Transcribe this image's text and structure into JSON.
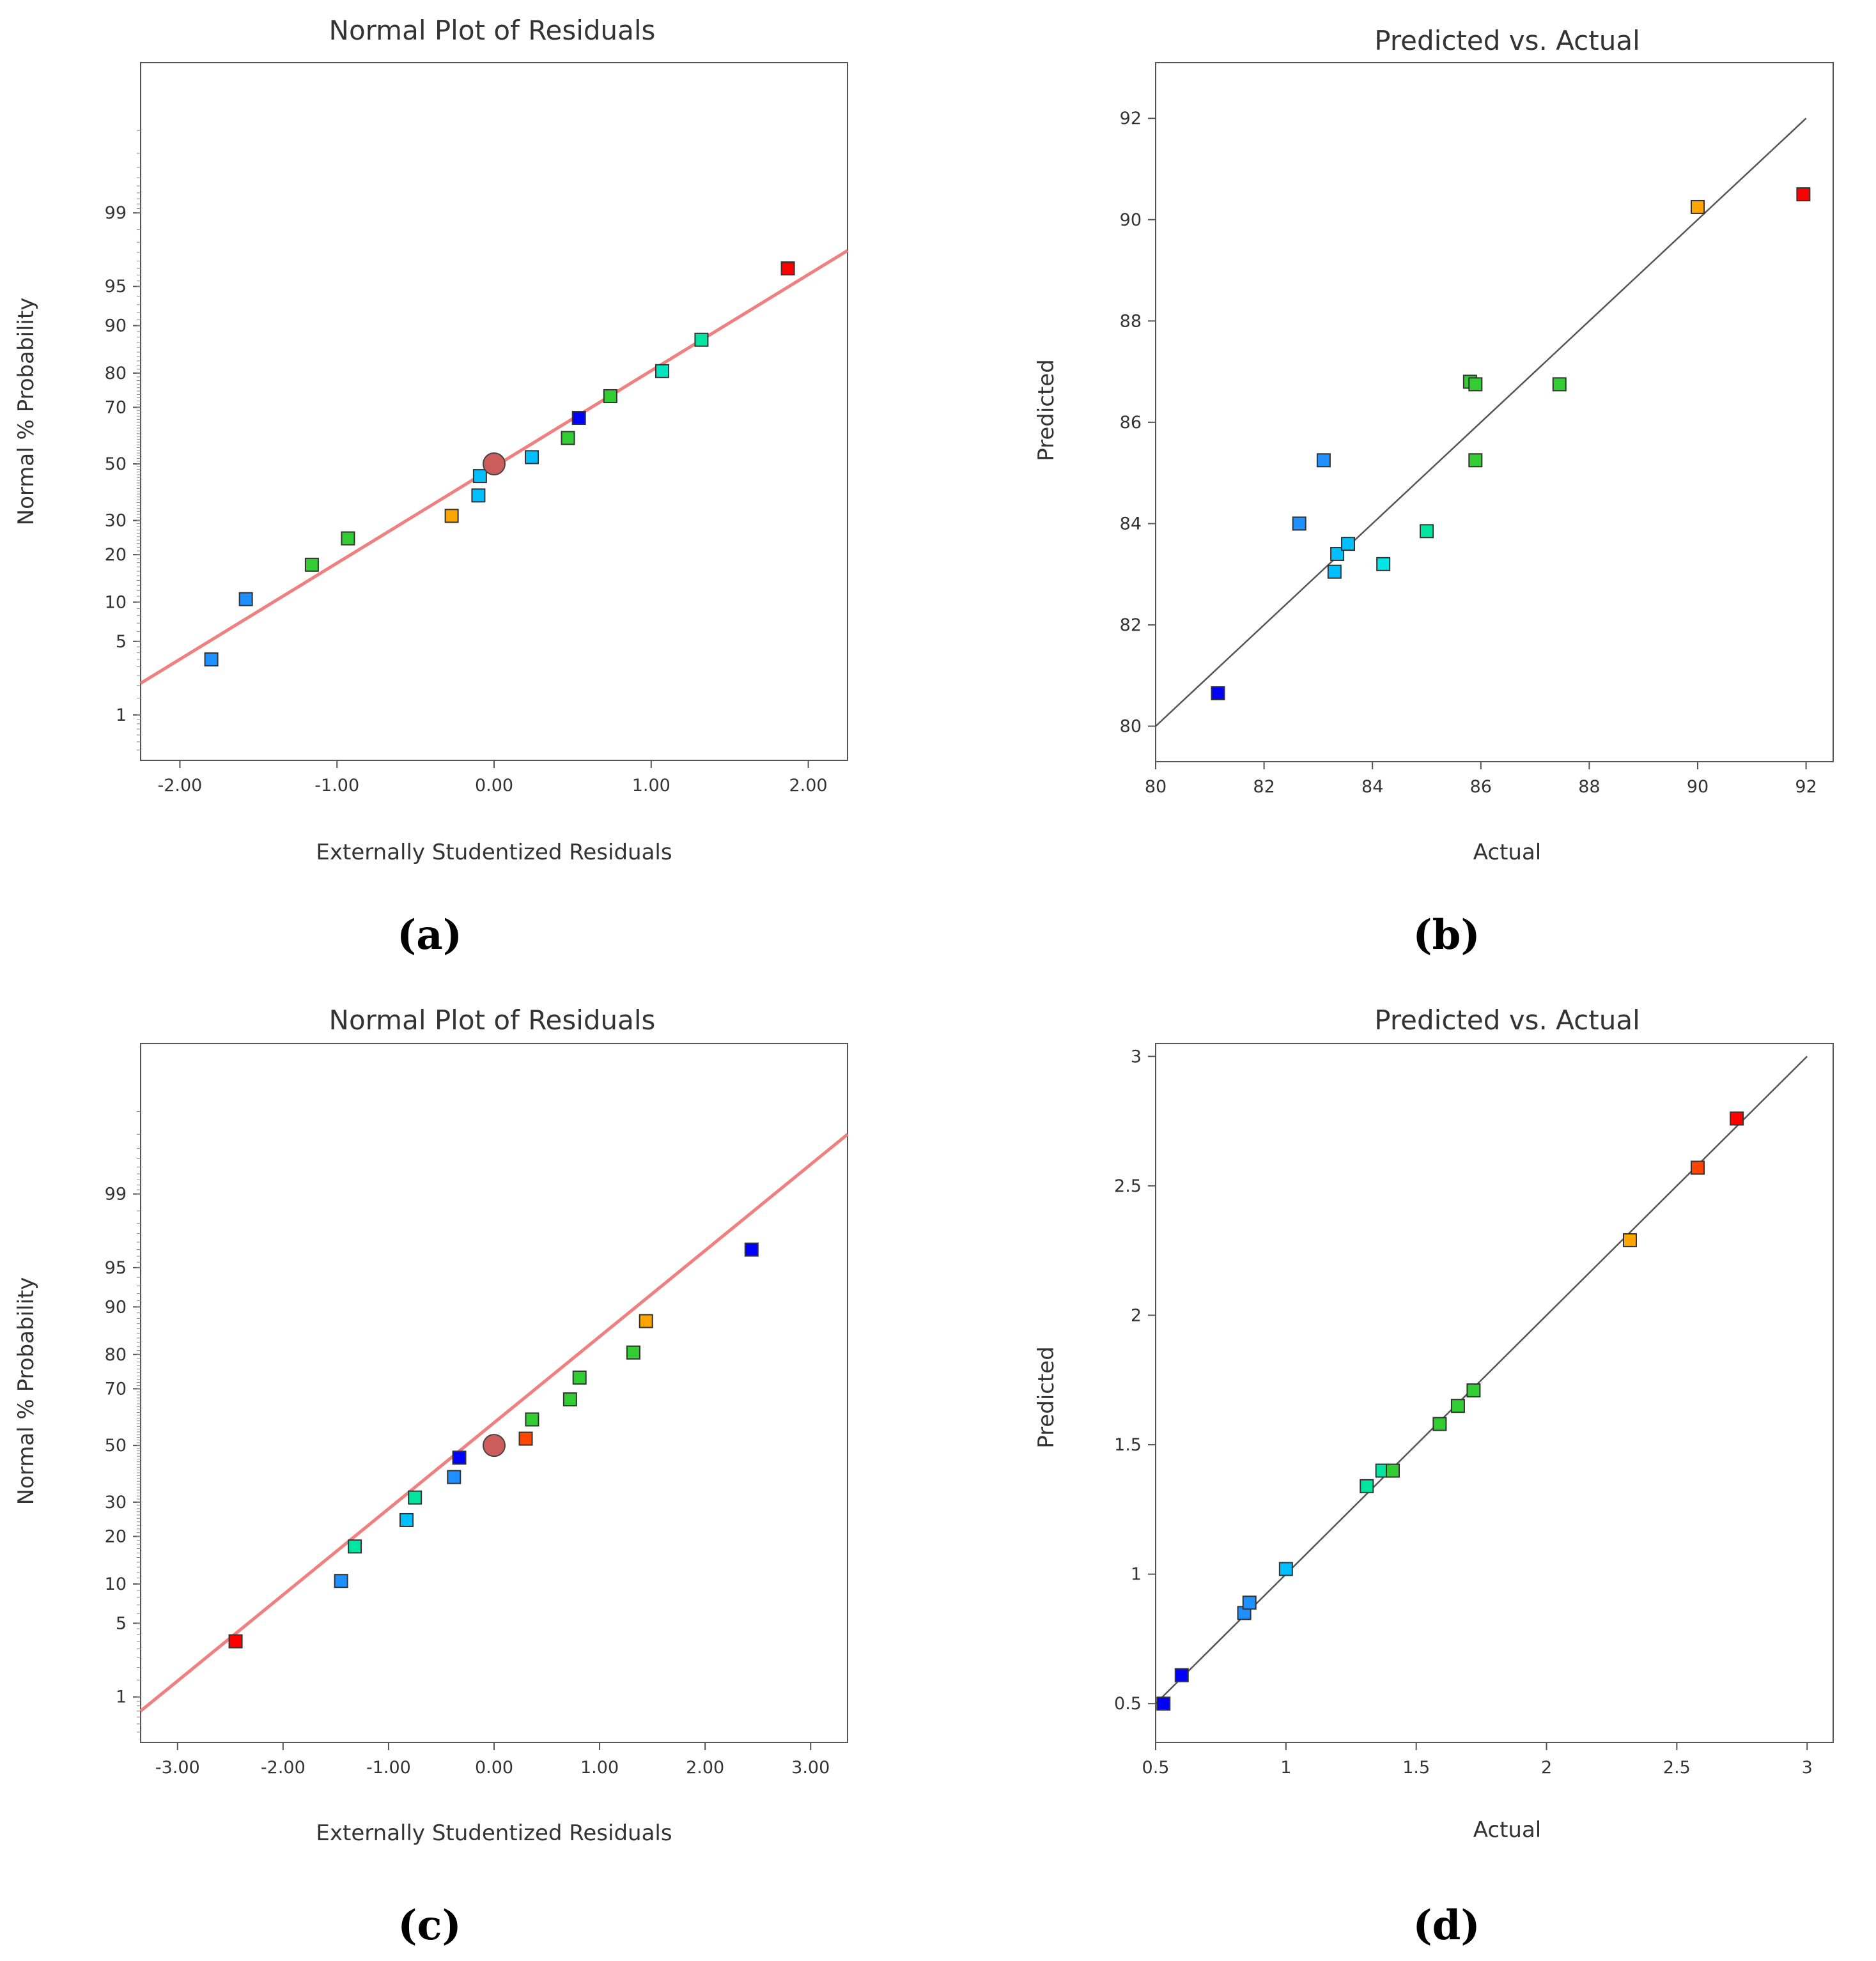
{
  "panels": [
    {
      "id": "a",
      "panel_label": "(a)",
      "chart_data": {
        "type": "scatter",
        "title": "Normal Plot of Residuals",
        "xlabel": "Externally Studentized Residuals",
        "ylabel": "Normal % Probability",
        "xlim": [
          -2.25,
          2.25
        ],
        "ylim": [
          0.3,
          99.99
        ],
        "y_scale": "normal-probability",
        "grid": false,
        "x_ticks": [
          -2,
          -1,
          0,
          1,
          2
        ],
        "x_tick_labels": [
          "-2.00",
          "-1.00",
          "0.00",
          "1.00",
          "2.00"
        ],
        "y_ticks": [
          1,
          5,
          10,
          20,
          30,
          50,
          70,
          80,
          90,
          95,
          99
        ],
        "y_tick_labels": [
          "1",
          "5",
          "10",
          "20",
          "30",
          "50",
          "70",
          "80",
          "90",
          "95",
          "99"
        ],
        "reference_line": {
          "x": [
            -2.25,
            2.25
          ],
          "y": [
            2.1,
            97.6
          ],
          "color": "#f08080"
        },
        "center_point": {
          "x": 0.0,
          "y": 50,
          "color": "#cd5c5c"
        },
        "points": [
          {
            "x": -1.8,
            "y": 3.5,
            "color": "#1e90ff"
          },
          {
            "x": -1.58,
            "y": 10.5,
            "color": "#1e90ff"
          },
          {
            "x": -1.16,
            "y": 17.5,
            "color": "#32cd32"
          },
          {
            "x": -0.93,
            "y": 24.5,
            "color": "#32cd32"
          },
          {
            "x": -0.27,
            "y": 31.5,
            "color": "#ffa500"
          },
          {
            "x": -0.1,
            "y": 38.5,
            "color": "#00bfff"
          },
          {
            "x": -0.09,
            "y": 45.5,
            "color": "#00bfff"
          },
          {
            "x": 0.24,
            "y": 52.5,
            "color": "#00bfff"
          },
          {
            "x": 0.47,
            "y": 59.5,
            "color": "#32cd32"
          },
          {
            "x": 0.54,
            "y": 66.5,
            "color": "#0000ff"
          },
          {
            "x": 0.74,
            "y": 73.5,
            "color": "#32cd32"
          },
          {
            "x": 1.07,
            "y": 80.5,
            "color": "#00e5c0"
          },
          {
            "x": 1.32,
            "y": 87.5,
            "color": "#00e5a0"
          },
          {
            "x": 1.87,
            "y": 96.5,
            "color": "#ff0000"
          }
        ]
      }
    },
    {
      "id": "b",
      "panel_label": "(b)",
      "chart_data": {
        "type": "scatter",
        "title": "Predicted vs. Actual",
        "xlabel": "Actual",
        "ylabel": "Predicted",
        "xlim": [
          80,
          92.5
        ],
        "ylim": [
          79.3,
          93.1
        ],
        "grid": false,
        "x_ticks": [
          80,
          82,
          84,
          86,
          88,
          90,
          92
        ],
        "x_tick_labels": [
          "80",
          "82",
          "84",
          "86",
          "88",
          "90",
          "92"
        ],
        "y_ticks": [
          80,
          82,
          84,
          86,
          88,
          90,
          92
        ],
        "y_tick_labels": [
          "80",
          "82",
          "84",
          "86",
          "88",
          "90",
          "92"
        ],
        "reference_line": {
          "x": [
            80,
            92
          ],
          "y": [
            80,
            92
          ],
          "color": "#555555"
        },
        "points": [
          {
            "x": 81.15,
            "y": 80.65,
            "color": "#0000ff"
          },
          {
            "x": 82.65,
            "y": 84.0,
            "color": "#1e90ff"
          },
          {
            "x": 83.1,
            "y": 85.25,
            "color": "#1e90ff"
          },
          {
            "x": 83.3,
            "y": 83.05,
            "color": "#00bfff"
          },
          {
            "x": 83.35,
            "y": 83.4,
            "color": "#00bfff"
          },
          {
            "x": 83.55,
            "y": 83.6,
            "color": "#00bfff"
          },
          {
            "x": 84.2,
            "y": 83.2,
            "color": "#00e5e5"
          },
          {
            "x": 85.0,
            "y": 83.85,
            "color": "#00e5a0"
          },
          {
            "x": 85.8,
            "y": 86.8,
            "color": "#32cd32"
          },
          {
            "x": 85.9,
            "y": 86.75,
            "color": "#32cd32"
          },
          {
            "x": 85.9,
            "y": 85.25,
            "color": "#32cd32"
          },
          {
            "x": 87.45,
            "y": 86.75,
            "color": "#32cd32"
          },
          {
            "x": 90.0,
            "y": 90.25,
            "color": "#ffa500"
          },
          {
            "x": 91.95,
            "y": 90.5,
            "color": "#ff0000"
          }
        ]
      }
    },
    {
      "id": "c",
      "panel_label": "(c)",
      "chart_data": {
        "type": "scatter",
        "title": "Normal Plot of Residuals",
        "xlabel": "Externally Studentized Residuals",
        "ylabel": "Normal % Probability",
        "xlim": [
          -3.35,
          3.35
        ],
        "ylim": [
          0.3,
          99.99
        ],
        "y_scale": "normal-probability",
        "grid": false,
        "x_ticks": [
          -3,
          -2,
          -1,
          0,
          1,
          2,
          3
        ],
        "x_tick_labels": [
          "-3.00",
          "-2.00",
          "-1.00",
          "0.00",
          "1.00",
          "2.00",
          "3.00"
        ],
        "y_ticks": [
          1,
          5,
          10,
          20,
          30,
          50,
          70,
          80,
          90,
          95,
          99
        ],
        "y_tick_labels": [
          "1",
          "5",
          "10",
          "20",
          "30",
          "50",
          "70",
          "80",
          "90",
          "95",
          "99"
        ],
        "reference_line": {
          "x": [
            -3.35,
            3.35
          ],
          "y": [
            0.7,
            99.8
          ],
          "color": "#f08080"
        },
        "center_point": {
          "x": 0.0,
          "y": 50,
          "color": "#cd5c5c"
        },
        "points": [
          {
            "x": -2.45,
            "y": 3.5,
            "color": "#ff0000"
          },
          {
            "x": -1.45,
            "y": 10.5,
            "color": "#1e90ff"
          },
          {
            "x": -1.32,
            "y": 17.5,
            "color": "#00e5a0"
          },
          {
            "x": -0.83,
            "y": 24.5,
            "color": "#00bfff"
          },
          {
            "x": -0.75,
            "y": 31.5,
            "color": "#00e5a0"
          },
          {
            "x": -0.38,
            "y": 38.5,
            "color": "#1e90ff"
          },
          {
            "x": -0.33,
            "y": 45.5,
            "color": "#0000ff"
          },
          {
            "x": 0.3,
            "y": 52.5,
            "color": "#ff4500"
          },
          {
            "x": 0.36,
            "y": 59.5,
            "color": "#32cd32"
          },
          {
            "x": 0.72,
            "y": 66.5,
            "color": "#32cd32"
          },
          {
            "x": 0.81,
            "y": 73.5,
            "color": "#32cd32"
          },
          {
            "x": 1.32,
            "y": 80.5,
            "color": "#32cd32"
          },
          {
            "x": 1.44,
            "y": 87.5,
            "color": "#ffa500"
          },
          {
            "x": 2.44,
            "y": 96.5,
            "color": "#0000ff"
          }
        ]
      }
    },
    {
      "id": "d",
      "panel_label": "(d)",
      "chart_data": {
        "type": "scatter",
        "title": "Predicted vs. Actual",
        "xlabel": "Actual",
        "ylabel": "Predicted",
        "xlim": [
          0.5,
          3.1
        ],
        "ylim": [
          0.35,
          3.05
        ],
        "grid": false,
        "x_ticks": [
          0.5,
          1,
          1.5,
          2,
          2.5,
          3
        ],
        "x_tick_labels": [
          "0.5",
          "1",
          "1.5",
          "2",
          "2.5",
          "3"
        ],
        "y_ticks": [
          0.5,
          1,
          1.5,
          2,
          2.5,
          3
        ],
        "y_tick_labels": [
          "0.5",
          "1",
          "1.5",
          "2",
          "2.5",
          "3"
        ],
        "reference_line": {
          "x": [
            0.5,
            3.0
          ],
          "y": [
            0.5,
            3.0
          ],
          "color": "#555555"
        },
        "points": [
          {
            "x": 0.53,
            "y": 0.5,
            "color": "#0000ff"
          },
          {
            "x": 0.6,
            "y": 0.61,
            "color": "#0000ff"
          },
          {
            "x": 0.84,
            "y": 0.85,
            "color": "#1e90ff"
          },
          {
            "x": 0.86,
            "y": 0.89,
            "color": "#1e90ff"
          },
          {
            "x": 1.0,
            "y": 1.02,
            "color": "#00bfff"
          },
          {
            "x": 1.31,
            "y": 1.34,
            "color": "#00e5a0"
          },
          {
            "x": 1.37,
            "y": 1.4,
            "color": "#00e5a0"
          },
          {
            "x": 1.41,
            "y": 1.4,
            "color": "#32cd32"
          },
          {
            "x": 1.59,
            "y": 1.58,
            "color": "#32cd32"
          },
          {
            "x": 1.66,
            "y": 1.65,
            "color": "#32cd32"
          },
          {
            "x": 1.72,
            "y": 1.71,
            "color": "#32cd32"
          },
          {
            "x": 2.32,
            "y": 2.29,
            "color": "#ffa500"
          },
          {
            "x": 2.58,
            "y": 2.57,
            "color": "#ff4500"
          },
          {
            "x": 2.73,
            "y": 2.76,
            "color": "#ff0000"
          }
        ]
      }
    }
  ]
}
